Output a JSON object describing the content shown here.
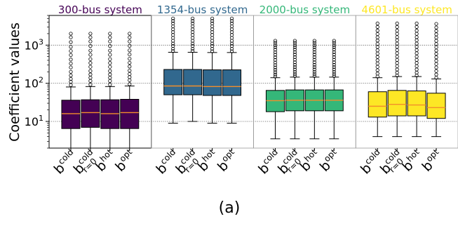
{
  "caption": "(a)",
  "chart_data": {
    "type": "box",
    "ylabel": "Coefficient values",
    "yscale": "log",
    "ylim": [
      2,
      6000
    ],
    "yticks": [
      {
        "value": 10,
        "label": "10",
        "exp": "1"
      },
      {
        "value": 100,
        "label": "10",
        "exp": "2"
      },
      {
        "value": 1000,
        "label": "10",
        "exp": "3"
      }
    ],
    "grid": "horizontal-dotted",
    "median_color": "#f28e2b",
    "categories": [
      {
        "base": "b",
        "sup": "cold",
        "sub": ""
      },
      {
        "base": "b",
        "sup": "cold",
        "sub": "r=0"
      },
      {
        "base": "b",
        "sup": "hot",
        "sub": ""
      },
      {
        "base": "b",
        "sup": "opt",
        "sub": ""
      }
    ],
    "panels": [
      {
        "title": "300-bus system",
        "color": "#440154",
        "boxes": [
          {
            "whislo": 1.9,
            "q1": 6.5,
            "median": 16,
            "q3": 36,
            "whishi": 80,
            "fliers": [
              90,
              110,
              130,
              160,
              200,
              260,
              330,
              420,
              550,
              700,
              900,
              1200,
              1600,
              2000
            ]
          },
          {
            "whislo": 1.9,
            "q1": 7,
            "median": 17,
            "q3": 37,
            "whishi": 82,
            "fliers": [
              92,
              115,
              140,
              170,
              210,
              270,
              340,
              430,
              560,
              720,
              950,
              1250,
              1600,
              2000
            ]
          },
          {
            "whislo": 1.9,
            "q1": 6.5,
            "median": 16,
            "q3": 37,
            "whishi": 82,
            "fliers": [
              92,
              115,
              140,
              170,
              210,
              270,
              340,
              430,
              560,
              720,
              950,
              1250,
              1600,
              2000
            ]
          },
          {
            "whislo": 1.9,
            "q1": 6.5,
            "median": 17,
            "q3": 38,
            "whishi": 85,
            "fliers": [
              95,
              120,
              145,
              175,
              215,
              275,
              345,
              440,
              570,
              730,
              960,
              1250,
              1600,
              2000
            ]
          }
        ]
      },
      {
        "title": "1354-bus system",
        "color": "#31688e",
        "boxes": [
          {
            "whislo": 9,
            "q1": 50,
            "median": 85,
            "q3": 230,
            "whishi": 650,
            "fliers": [
              700,
              800,
              950,
              1100,
              1300,
              1550,
              1850,
              2200,
              2600,
              3100,
              3700,
              4300,
              5000
            ]
          },
          {
            "whislo": 10,
            "q1": 50,
            "median": 85,
            "q3": 230,
            "whishi": 650,
            "fliers": [
              700,
              800,
              950,
              1100,
              1300,
              1550,
              1850,
              2200,
              2600,
              3100,
              3700,
              4300,
              5000
            ]
          },
          {
            "whislo": 9,
            "q1": 48,
            "median": 82,
            "q3": 225,
            "whishi": 640,
            "fliers": [
              690,
              800,
              950,
              1100,
              1300,
              1550,
              1850,
              2200,
              2600,
              3100,
              3700,
              4300,
              5000
            ]
          },
          {
            "whislo": 9,
            "q1": 48,
            "median": 82,
            "q3": 225,
            "whishi": 640,
            "fliers": [
              690,
              800,
              950,
              1100,
              1300,
              1550,
              1850,
              2200,
              2600,
              3100,
              3700,
              4300,
              5000
            ]
          }
        ]
      },
      {
        "title": "2000-bus system",
        "color": "#35b779",
        "boxes": [
          {
            "whislo": 3.5,
            "q1": 18,
            "median": 35,
            "q3": 65,
            "whishi": 140,
            "fliers": [
              150,
              170,
              195,
              225,
              260,
              300,
              350,
              410,
              480,
              560,
              650,
              760,
              880,
              1000,
              1150,
              1300
            ]
          },
          {
            "whislo": 3.5,
            "q1": 19,
            "median": 36,
            "q3": 67,
            "whishi": 145,
            "fliers": [
              155,
              175,
              200,
              230,
              265,
              305,
              355,
              415,
              485,
              565,
              655,
              765,
              885,
              1000,
              1150,
              1300
            ]
          },
          {
            "whislo": 3.5,
            "q1": 19,
            "median": 36,
            "q3": 67,
            "whishi": 145,
            "fliers": [
              155,
              175,
              200,
              230,
              265,
              305,
              355,
              415,
              485,
              565,
              655,
              765,
              885,
              1000,
              1150,
              1300
            ]
          },
          {
            "whislo": 3.5,
            "q1": 19,
            "median": 36,
            "q3": 67,
            "whishi": 145,
            "fliers": [
              155,
              175,
              200,
              230,
              265,
              305,
              355,
              415,
              485,
              565,
              655,
              765,
              885,
              1000,
              1150,
              1300
            ]
          }
        ]
      },
      {
        "title": "4601-bus system",
        "color": "#fde725",
        "boxes": [
          {
            "whislo": 4,
            "q1": 13,
            "median": 25,
            "q3": 60,
            "whishi": 140,
            "fliers": [
              150,
              180,
              220,
              270,
              330,
              400,
              490,
              600,
              730,
              890,
              1080,
              1320,
              1600,
              1950,
              2400,
              3000,
              3700
            ]
          },
          {
            "whislo": 4,
            "q1": 14,
            "median": 28,
            "q3": 65,
            "whishi": 150,
            "fliers": [
              160,
              190,
              230,
              280,
              340,
              410,
              500,
              610,
              740,
              900,
              1100,
              1340,
              1620,
              1980,
              2400,
              3000,
              3700
            ]
          },
          {
            "whislo": 4,
            "q1": 14,
            "median": 27,
            "q3": 63,
            "whishi": 150,
            "fliers": [
              160,
              190,
              230,
              280,
              340,
              410,
              500,
              610,
              740,
              900,
              1100,
              1340,
              1620,
              1980,
              2400,
              3000,
              3700
            ]
          },
          {
            "whislo": 4,
            "q1": 12,
            "median": 23,
            "q3": 55,
            "whishi": 130,
            "fliers": [
              140,
              170,
              210,
              260,
              320,
              390,
              480,
              590,
              720,
              880,
              1070,
              1300,
              1580,
              1920,
              2350,
              2900,
              3600
            ]
          }
        ]
      }
    ]
  }
}
